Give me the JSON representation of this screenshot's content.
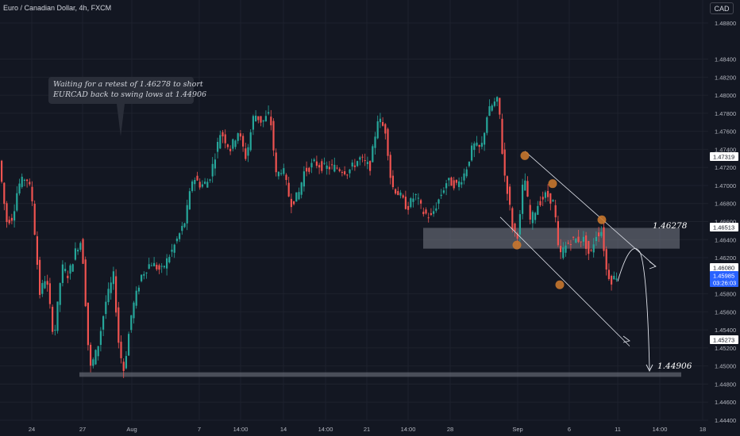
{
  "header": {
    "pair_title": "Euro / Canadian Dollar, 4h, FXCM",
    "currency_badge": "CAD"
  },
  "annotations": {
    "note_line1": "Waiting for a retest of 1.46278 to short",
    "note_line2": "EURCAD back to swing lows at 1.44906",
    "resistance_label": "1.46278",
    "target_label": "1.44906"
  },
  "colors": {
    "background": "#131722",
    "grid": "#1e222d",
    "up_candle": "#26a69a",
    "down_candle": "#ef5350",
    "swing_marker": "#c8772e",
    "zone": "#787b86",
    "arrow": "#e0e3eb",
    "last_price_tag": "#2962ff"
  },
  "chart_data": {
    "type": "candlestick",
    "title": "Euro / Canadian Dollar, 4h, FXCM",
    "ylim": [
      1.444,
      1.489
    ],
    "y_ticks": [
      "1.48800",
      "1.48400",
      "1.48200",
      "1.48000",
      "1.47800",
      "1.47600",
      "1.47400",
      "1.47200",
      "1.47000",
      "1.46800",
      "1.46600",
      "1.46400",
      "1.46200",
      "1.45800",
      "1.45600",
      "1.45400",
      "1.45200",
      "1.45000",
      "1.44800",
      "1.44600",
      "1.44400"
    ],
    "x_ticks": [
      "24",
      "27",
      "Aug",
      "7",
      "14:00",
      "14",
      "14:00",
      "21",
      "14:00",
      "28",
      "Sep",
      "6",
      "11",
      "14:00",
      "18"
    ],
    "price_tags": [
      {
        "value": "1.47319",
        "kind": "level"
      },
      {
        "value": "1.46513",
        "kind": "level"
      },
      {
        "value": "1.46080",
        "kind": "level"
      },
      {
        "value": "1.45985",
        "kind": "last"
      },
      {
        "value": "03:26:03",
        "kind": "countdown"
      },
      {
        "value": "1.45273",
        "kind": "level"
      }
    ],
    "zones": [
      {
        "name": "resistance-zone",
        "from": 1.463,
        "to": 1.4653
      },
      {
        "name": "support-zone",
        "from": 1.4488,
        "to": 1.4493
      }
    ],
    "swing_markers": [
      1.4733,
      1.4702,
      1.4634,
      1.4662,
      1.459
    ],
    "key_levels": [
      1.46278,
      1.44906
    ],
    "anchors": [
      {
        "x": 0,
        "p": 1.4735
      },
      {
        "x": 10,
        "p": 1.466
      },
      {
        "x": 18,
        "p": 1.4665
      },
      {
        "x": 25,
        "p": 1.47
      },
      {
        "x": 35,
        "p": 1.471
      },
      {
        "x": 42,
        "p": 1.469
      },
      {
        "x": 52,
        "p": 1.458
      },
      {
        "x": 60,
        "p": 1.46
      },
      {
        "x": 70,
        "p": 1.453
      },
      {
        "x": 80,
        "p": 1.461
      },
      {
        "x": 88,
        "p": 1.46
      },
      {
        "x": 98,
        "p": 1.463
      },
      {
        "x": 105,
        "p": 1.464
      },
      {
        "x": 115,
        "p": 1.4495
      },
      {
        "x": 125,
        "p": 1.452
      },
      {
        "x": 135,
        "p": 1.457
      },
      {
        "x": 145,
        "p": 1.46
      },
      {
        "x": 152,
        "p": 1.452
      },
      {
        "x": 158,
        "p": 1.4495
      },
      {
        "x": 168,
        "p": 1.456
      },
      {
        "x": 180,
        "p": 1.46
      },
      {
        "x": 192,
        "p": 1.4615
      },
      {
        "x": 205,
        "p": 1.4605
      },
      {
        "x": 220,
        "p": 1.463
      },
      {
        "x": 235,
        "p": 1.466
      },
      {
        "x": 245,
        "p": 1.471
      },
      {
        "x": 255,
        "p": 1.47
      },
      {
        "x": 265,
        "p": 1.4705
      },
      {
        "x": 272,
        "p": 1.473
      },
      {
        "x": 280,
        "p": 1.476
      },
      {
        "x": 292,
        "p": 1.474
      },
      {
        "x": 302,
        "p": 1.476
      },
      {
        "x": 312,
        "p": 1.473
      },
      {
        "x": 322,
        "p": 1.478
      },
      {
        "x": 332,
        "p": 1.477
      },
      {
        "x": 342,
        "p": 1.478
      },
      {
        "x": 350,
        "p": 1.471
      },
      {
        "x": 358,
        "p": 1.472
      },
      {
        "x": 368,
        "p": 1.468
      },
      {
        "x": 378,
        "p": 1.469
      },
      {
        "x": 385,
        "p": 1.4715
      },
      {
        "x": 398,
        "p": 1.4725
      },
      {
        "x": 410,
        "p": 1.472
      },
      {
        "x": 425,
        "p": 1.472
      },
      {
        "x": 440,
        "p": 1.4715
      },
      {
        "x": 455,
        "p": 1.473
      },
      {
        "x": 468,
        "p": 1.472
      },
      {
        "x": 478,
        "p": 1.4775
      },
      {
        "x": 488,
        "p": 1.476
      },
      {
        "x": 495,
        "p": 1.47
      },
      {
        "x": 505,
        "p": 1.469
      },
      {
        "x": 515,
        "p": 1.4675
      },
      {
        "x": 525,
        "p": 1.469
      },
      {
        "x": 535,
        "p": 1.467
      },
      {
        "x": 545,
        "p": 1.4665
      },
      {
        "x": 555,
        "p": 1.4685
      },
      {
        "x": 565,
        "p": 1.4705
      },
      {
        "x": 578,
        "p": 1.47
      },
      {
        "x": 588,
        "p": 1.4715
      },
      {
        "x": 598,
        "p": 1.4745
      },
      {
        "x": 608,
        "p": 1.474
      },
      {
        "x": 616,
        "p": 1.478
      },
      {
        "x": 623,
        "p": 1.479
      },
      {
        "x": 630,
        "p": 1.4795
      },
      {
        "x": 636,
        "p": 1.472
      },
      {
        "x": 642,
        "p": 1.469
      },
      {
        "x": 648,
        "p": 1.465
      },
      {
        "x": 655,
        "p": 1.4645
      },
      {
        "x": 662,
        "p": 1.4715
      },
      {
        "x": 670,
        "p": 1.466
      },
      {
        "x": 680,
        "p": 1.468
      },
      {
        "x": 690,
        "p": 1.469
      },
      {
        "x": 700,
        "p": 1.468
      },
      {
        "x": 706,
        "p": 1.462
      },
      {
        "x": 712,
        "p": 1.463
      },
      {
        "x": 722,
        "p": 1.464
      },
      {
        "x": 730,
        "p": 1.464
      },
      {
        "x": 738,
        "p": 1.464
      },
      {
        "x": 745,
        "p": 1.462
      },
      {
        "x": 752,
        "p": 1.4645
      },
      {
        "x": 760,
        "p": 1.465
      },
      {
        "x": 766,
        "p": 1.4605
      },
      {
        "x": 772,
        "p": 1.4595
      },
      {
        "x": 778,
        "p": 1.46
      }
    ]
  }
}
